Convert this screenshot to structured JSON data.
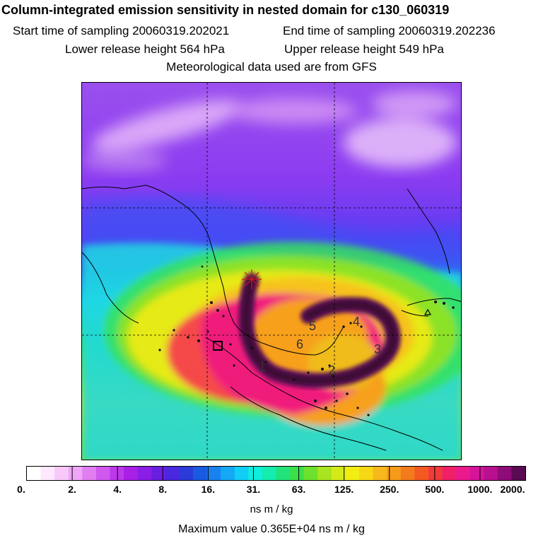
{
  "header": {
    "title": "Column-integrated emission sensitivity in nested domain for c130_060319",
    "start_time": "Start time of sampling 20060319.202021",
    "end_time": "End time of sampling 20060319.202236",
    "lower_height": "Lower release height  564 hPa",
    "upper_height": "Upper release height  549 hPa",
    "met_data": "Meteorological data used are from GFS"
  },
  "map": {
    "release_markers": [
      "1",
      "2",
      "3",
      "4",
      "5",
      "6"
    ],
    "colors": {
      "background_purple": "#8a3cf0",
      "blue": "#3a5cf6",
      "cyan": "#1fe3e0",
      "green": "#37e65a",
      "yellow": "#e8e81a",
      "orange": "#f5a623",
      "magenta": "#f0207a",
      "dark_purple": "#4a1040"
    }
  },
  "colorbar": {
    "ticks": [
      "0.",
      "2.",
      "4.",
      "8.",
      "16.",
      "31.",
      "63.",
      "125.",
      "250.",
      "500.",
      "1000.",
      "2000."
    ],
    "colors": [
      "#ffffff",
      "#fde8fe",
      "#f7c9fb",
      "#eea6f7",
      "#e07ef2",
      "#cf58ef",
      "#bd38ea",
      "#a81fe6",
      "#8a1ee6",
      "#6a1fe0",
      "#4a28e0",
      "#2c3ad8",
      "#1a5ae0",
      "#1a82ef",
      "#14a8f5",
      "#10cef5",
      "#10eede",
      "#14ecb0",
      "#22e27a",
      "#3ae04a",
      "#6ee02e",
      "#a8e420",
      "#d4ea18",
      "#f2ee14",
      "#f6d814",
      "#f6b81a",
      "#f69a1c",
      "#f47a1e",
      "#f25a22",
      "#f23a3a",
      "#f02068",
      "#ea1a8c",
      "#d6149a",
      "#b8108e",
      "#8e0c78",
      "#5a0a52"
    ],
    "unit": "ns m / kg",
    "max_value": "Maximum value  0.365E+04 ns m / kg"
  }
}
